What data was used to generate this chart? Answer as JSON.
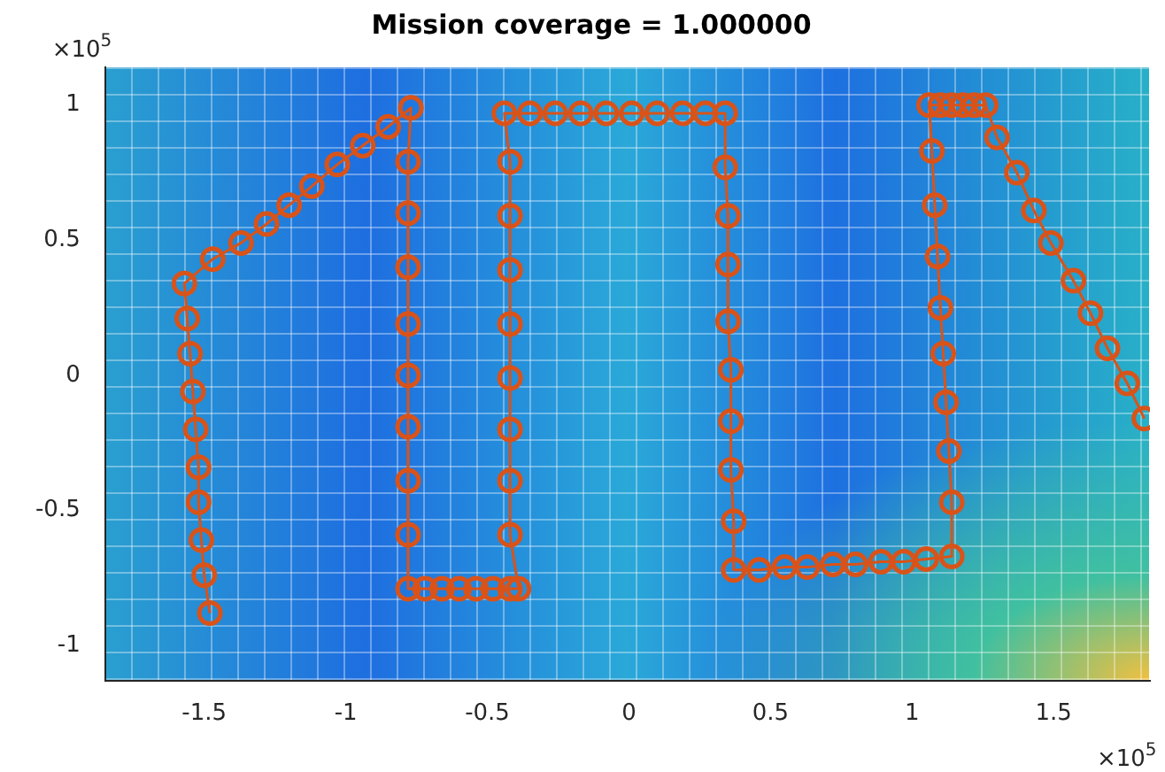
{
  "chart_data": {
    "type": "line",
    "title": "Mission coverage = 1.000000",
    "xlim": [
      -1.85,
      1.84
    ],
    "ylim": [
      -1.13,
      1.14
    ],
    "xticks": [
      -1.5,
      -1,
      -0.5,
      0,
      0.5,
      1,
      1.5
    ],
    "yticks": [
      -1,
      -0.5,
      0,
      0.5,
      1
    ],
    "grid": false,
    "legend": false,
    "marker": "circle",
    "line_style": "solid",
    "annotations": [
      "×10$^{5}$",
      "×10$^{5}$"
    ],
    "series": [
      {
        "color": "#d95319",
        "x": [
          -1.48,
          -1.5,
          -1.51,
          -1.52,
          -1.52,
          -1.53,
          -1.54,
          -1.55,
          -1.56,
          -1.57,
          -1.47,
          -1.37,
          -1.28,
          -1.2,
          -1.12,
          -1.03,
          -0.94,
          -0.85,
          -0.77,
          -0.78,
          -0.78,
          -0.78,
          -0.78,
          -0.78,
          -0.78,
          -0.78,
          -0.78,
          -0.78,
          -0.72,
          -0.66,
          -0.6,
          -0.54,
          -0.48,
          -0.42,
          -0.39,
          -0.42,
          -0.42,
          -0.42,
          -0.42,
          -0.42,
          -0.42,
          -0.42,
          -0.42,
          -0.44,
          -0.35,
          -0.26,
          -0.17,
          -0.08,
          0.01,
          0.1,
          0.19,
          0.27,
          0.34,
          0.34,
          0.35,
          0.35,
          0.35,
          0.36,
          0.36,
          0.36,
          0.37,
          0.37,
          0.46,
          0.55,
          0.63,
          0.72,
          0.8,
          0.89,
          0.97,
          1.05,
          1.14,
          1.14,
          1.13,
          1.12,
          1.11,
          1.1,
          1.09,
          1.08,
          1.07,
          1.06,
          1.1,
          1.14,
          1.18,
          1.22,
          1.26,
          1.3,
          1.37,
          1.43,
          1.49,
          1.57,
          1.63,
          1.69,
          1.76,
          1.82
        ],
        "values": [
          -0.88,
          -0.74,
          -0.61,
          -0.47,
          -0.34,
          -0.2,
          -0.06,
          0.08,
          0.21,
          0.34,
          0.43,
          0.49,
          0.56,
          0.63,
          0.7,
          0.78,
          0.85,
          0.92,
          0.99,
          0.79,
          0.6,
          0.4,
          0.19,
          0.0,
          -0.19,
          -0.39,
          -0.59,
          -0.79,
          -0.79,
          -0.79,
          -0.79,
          -0.79,
          -0.79,
          -0.79,
          -0.79,
          -0.59,
          -0.39,
          -0.2,
          -0.01,
          0.19,
          0.39,
          0.59,
          0.79,
          0.97,
          0.97,
          0.97,
          0.97,
          0.97,
          0.97,
          0.97,
          0.97,
          0.97,
          0.97,
          0.77,
          0.59,
          0.41,
          0.2,
          0.02,
          -0.17,
          -0.35,
          -0.54,
          -0.72,
          -0.72,
          -0.71,
          -0.71,
          -0.7,
          -0.7,
          -0.69,
          -0.69,
          -0.68,
          -0.67,
          -0.47,
          -0.28,
          -0.1,
          0.08,
          0.25,
          0.44,
          0.63,
          0.83,
          1.0,
          1.0,
          1.0,
          1.0,
          1.0,
          1.0,
          0.88,
          0.75,
          0.61,
          0.49,
          0.35,
          0.23,
          0.1,
          -0.03,
          -0.16
        ]
      }
    ]
  }
}
